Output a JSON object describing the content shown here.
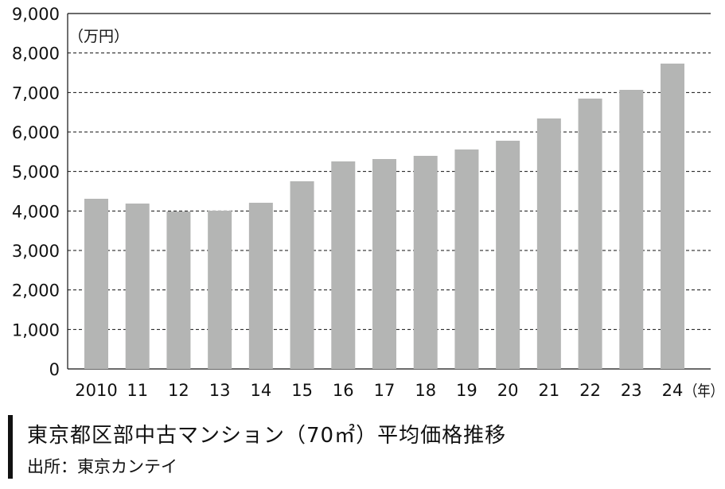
{
  "chart_data": {
    "type": "bar",
    "title": "東京都区部中古マンション（70㎡）平均価格推移",
    "source": "出所：東京カンテイ",
    "ylabel": "（万円）",
    "xlabel": "（年）",
    "categories": [
      "2010",
      "11",
      "12",
      "13",
      "14",
      "15",
      "16",
      "17",
      "18",
      "19",
      "20",
      "21",
      "22",
      "23",
      "24"
    ],
    "values": [
      4309,
      4188,
      3987,
      4007,
      4208,
      4752,
      5255,
      5315,
      5396,
      5557,
      5779,
      6342,
      6846,
      7067,
      7732
    ],
    "ylim": [
      0,
      9000
    ],
    "yticks": [
      0,
      1000,
      2000,
      3000,
      4000,
      5000,
      6000,
      7000,
      8000,
      9000
    ],
    "ytick_labels": [
      "0",
      "1,000",
      "2,000",
      "3,000",
      "4,000",
      "5,000",
      "6,000",
      "7,000",
      "8,000",
      "9,000"
    ],
    "grid": true,
    "bar_color": "#b4b5b4"
  }
}
